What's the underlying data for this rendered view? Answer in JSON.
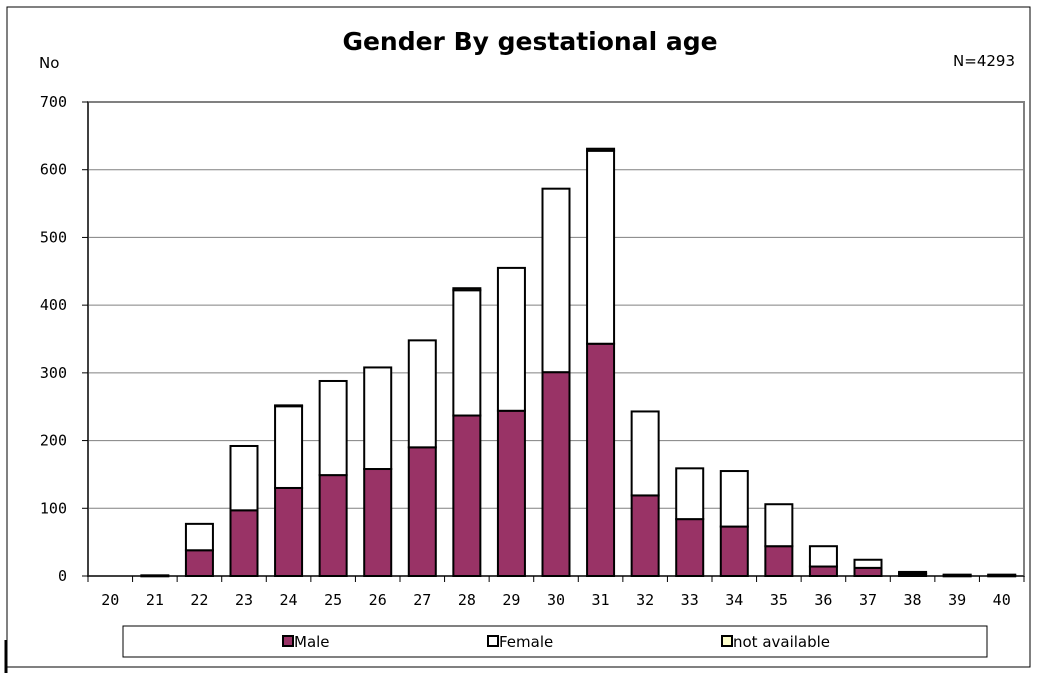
{
  "chart_data": {
    "type": "bar",
    "stacked": true,
    "title": "Gender By gestational age",
    "ylabel": "No",
    "annotation": "N=4293",
    "xlabel": "",
    "categories": [
      "20",
      "21",
      "22",
      "23",
      "24",
      "25",
      "26",
      "27",
      "28",
      "29",
      "30",
      "31",
      "32",
      "33",
      "34",
      "35",
      "36",
      "37",
      "38",
      "39",
      "40"
    ],
    "series": [
      {
        "name": "Male",
        "color": "#993366",
        "values": [
          0,
          1,
          38,
          97,
          130,
          149,
          158,
          190,
          237,
          244,
          301,
          343,
          119,
          84,
          73,
          44,
          14,
          12,
          3,
          1,
          1
        ]
      },
      {
        "name": "Female",
        "color": "#ffffff",
        "values": [
          0,
          0,
          39,
          95,
          121,
          139,
          150,
          158,
          185,
          211,
          271,
          285,
          124,
          75,
          82,
          62,
          30,
          12,
          2,
          1,
          1
        ]
      },
      {
        "name": "not available",
        "color": "#ffffcc",
        "values": [
          0,
          0,
          0,
          0,
          1,
          0,
          0,
          0,
          3,
          0,
          0,
          3,
          0,
          0,
          0,
          0,
          0,
          0,
          1,
          0,
          0
        ]
      }
    ],
    "ylim": [
      0,
      700
    ],
    "yticks": [
      0,
      100,
      200,
      300,
      400,
      500,
      600,
      700
    ],
    "grid": true,
    "legend": "bottom"
  }
}
